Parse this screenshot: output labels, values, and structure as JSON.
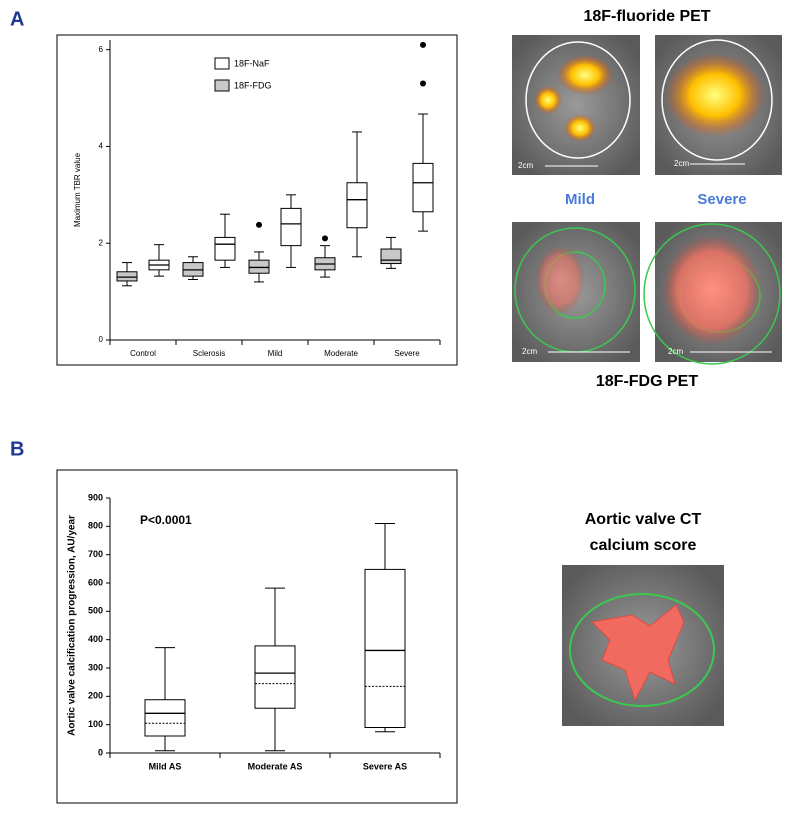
{
  "panel_labels": [
    "A",
    "B"
  ],
  "images": {
    "fluoride_caption": "18F-fluoride PET",
    "severity_labels": [
      "Mild",
      "Severe"
    ],
    "fdg_caption": "18F-FDG PET",
    "scale_labels": [
      "2cm",
      "2cm",
      "2cm",
      "2cm"
    ],
    "ct_caption": [
      "Aortic valve CT",
      "calcium score"
    ]
  },
  "chart_data": [
    {
      "type": "box",
      "y_label": "Maximum TBR value",
      "categories": [
        "Control",
        "Sclerosis",
        "Mild",
        "Moderate",
        "Severe"
      ],
      "series": [
        {
          "name": "18F-NaF",
          "color": "#ffffff",
          "min": [
            1.32,
            1.5,
            1.5,
            1.72,
            2.25
          ],
          "q1": [
            1.45,
            1.65,
            1.95,
            2.32,
            2.65
          ],
          "median": [
            1.55,
            1.98,
            2.4,
            2.9,
            3.25
          ],
          "q3": [
            1.65,
            2.12,
            2.72,
            3.25,
            3.65
          ],
          "max": [
            1.97,
            2.6,
            3.0,
            4.3,
            4.67
          ],
          "outliers": [
            [],
            [],
            [],
            [],
            [
              5.3,
              6.1
            ]
          ]
        },
        {
          "name": "18F-FDG",
          "color": "#c8c8c8",
          "min": [
            1.12,
            1.25,
            1.2,
            1.3,
            1.48
          ],
          "q1": [
            1.22,
            1.32,
            1.38,
            1.45,
            1.58
          ],
          "median": [
            1.3,
            1.45,
            1.5,
            1.57,
            1.65
          ],
          "q3": [
            1.41,
            1.6,
            1.65,
            1.7,
            1.88
          ],
          "max": [
            1.6,
            1.72,
            1.82,
            1.95,
            2.12
          ],
          "outliers": [
            [],
            [],
            [
              2.38
            ],
            [
              2.1
            ],
            []
          ]
        }
      ],
      "ylim": [
        0,
        6.2
      ],
      "yticks": [
        0,
        2,
        4,
        6
      ]
    },
    {
      "type": "box",
      "y_label": "Aortic valve calcification progression,  AU/year",
      "annotation": "P<0.0001",
      "categories": [
        "Mild AS",
        "Moderate AS",
        "Severe AS"
      ],
      "series": [
        {
          "color": "#ffffff",
          "min": [
            8,
            8,
            75
          ],
          "q1": [
            60,
            158,
            90
          ],
          "median": [
            140,
            282,
            362
          ],
          "q3": [
            188,
            378,
            648
          ],
          "max": [
            372,
            582,
            810
          ],
          "mean": [
            105,
            245,
            235
          ]
        }
      ],
      "ylim": [
        0,
        900
      ],
      "yticks": [
        0,
        100,
        200,
        300,
        400,
        500,
        600,
        700,
        800,
        900
      ]
    }
  ]
}
